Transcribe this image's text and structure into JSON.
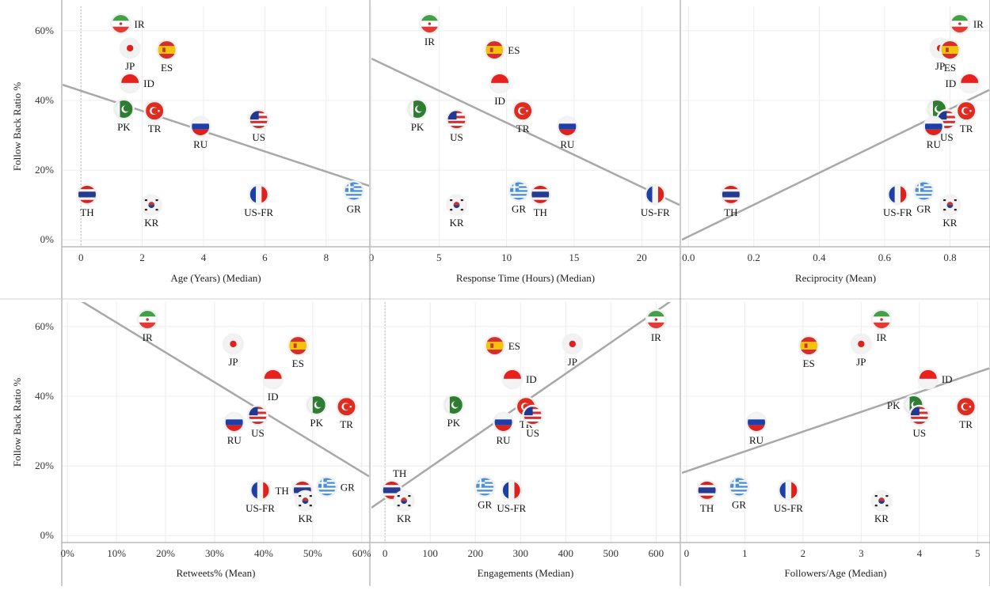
{
  "ylabel": "Follow Back Ratio %",
  "y_ticks": [
    "0%",
    "20%",
    "40%",
    "60%"
  ],
  "y_tick_values": [
    0,
    20,
    40,
    60
  ],
  "colors": {
    "grid": "#ececec",
    "trend": "#a8a8a8",
    "frame": "#9a9a9a",
    "zero_line": "#bbbbbb"
  },
  "countries": {
    "IR": {
      "flag": "iran-flag"
    },
    "JP": {
      "flag": "japan-flag"
    },
    "ES": {
      "flag": "spain-flag"
    },
    "ID": {
      "flag": "indonesia-flag"
    },
    "PK": {
      "flag": "pakistan-flag"
    },
    "TR": {
      "flag": "turkey-flag"
    },
    "RU": {
      "flag": "russia-flag"
    },
    "US": {
      "flag": "usa-flag"
    },
    "TH": {
      "flag": "thailand-flag"
    },
    "KR": {
      "flag": "south-korea-flag"
    },
    "US-FR": {
      "flag": "france-flag"
    },
    "GR": {
      "flag": "greece-flag"
    }
  },
  "chart_data": [
    {
      "type": "scatter",
      "xlabel": "Age (Years) (Median)",
      "ylabel": "Follow Back Ratio %",
      "x_ticks": [
        "0",
        "2",
        "4",
        "6",
        "8"
      ],
      "x_tick_values": [
        0,
        2,
        4,
        6,
        8
      ],
      "xlim": [
        -0.6,
        9.4
      ],
      "ylim": [
        -2,
        67
      ],
      "zero_line": 0,
      "trend": [
        [
          -0.6,
          44.5
        ],
        [
          9.4,
          15.5
        ]
      ],
      "points": [
        {
          "label": "IR",
          "x": 1.3,
          "y": 62
        },
        {
          "label": "JP",
          "x": 1.6,
          "y": 55
        },
        {
          "label": "ES",
          "x": 2.8,
          "y": 54.5
        },
        {
          "label": "ID",
          "x": 1.6,
          "y": 45
        },
        {
          "label": "PK",
          "x": 1.4,
          "y": 37.5
        },
        {
          "label": "TR",
          "x": 2.4,
          "y": 37
        },
        {
          "label": "RU",
          "x": 3.9,
          "y": 32.5
        },
        {
          "label": "US",
          "x": 5.8,
          "y": 34.5
        },
        {
          "label": "TH",
          "x": 0.2,
          "y": 13
        },
        {
          "label": "KR",
          "x": 2.3,
          "y": 10
        },
        {
          "label": "US-FR",
          "x": 5.8,
          "y": 13
        },
        {
          "label": "GR",
          "x": 8.9,
          "y": 14
        }
      ]
    },
    {
      "type": "scatter",
      "xlabel": "Response Time (Hours) (Median)",
      "ylabel": "Follow Back Ratio %",
      "x_ticks": [
        "0",
        "5",
        "10",
        "15",
        "20"
      ],
      "x_tick_values": [
        0,
        5,
        10,
        15,
        20
      ],
      "xlim": [
        0,
        22.8
      ],
      "ylim": [
        -2,
        67
      ],
      "trend": [
        [
          0,
          52
        ],
        [
          22.8,
          10
        ]
      ],
      "points": [
        {
          "label": "IR",
          "x": 4.3,
          "y": 62
        },
        {
          "label": "ES",
          "x": 9.1,
          "y": 54.5
        },
        {
          "label": "ID",
          "x": 9.5,
          "y": 45
        },
        {
          "label": "PK",
          "x": 3.4,
          "y": 37.5
        },
        {
          "label": "US",
          "x": 6.3,
          "y": 34.5
        },
        {
          "label": "TR",
          "x": 11.2,
          "y": 37
        },
        {
          "label": "RU",
          "x": 14.5,
          "y": 32.5
        },
        {
          "label": "KR",
          "x": 6.3,
          "y": 10
        },
        {
          "label": "GR",
          "x": 10.9,
          "y": 14
        },
        {
          "label": "TH",
          "x": 12.5,
          "y": 13
        },
        {
          "label": "US-FR",
          "x": 21,
          "y": 13
        }
      ]
    },
    {
      "type": "scatter",
      "xlabel": "Reciprocity (Mean)",
      "ylabel": "Follow Back Ratio %",
      "x_ticks": [
        "0.0",
        "0.2",
        "0.4",
        "0.6",
        "0.8"
      ],
      "x_tick_values": [
        0,
        0.2,
        0.4,
        0.6,
        0.8
      ],
      "xlim": [
        -0.02,
        0.92
      ],
      "ylim": [
        -2,
        67
      ],
      "trend": [
        [
          -0.02,
          0
        ],
        [
          0.92,
          43
        ]
      ],
      "points": [
        {
          "label": "IR",
          "x": 0.83,
          "y": 62
        },
        {
          "label": "JP",
          "x": 0.77,
          "y": 55
        },
        {
          "label": "ES",
          "x": 0.8,
          "y": 54.5
        },
        {
          "label": "ID",
          "x": 0.86,
          "y": 45
        },
        {
          "label": "PK",
          "x": 0.76,
          "y": 37.5
        },
        {
          "label": "US",
          "x": 0.79,
          "y": 34.5
        },
        {
          "label": "RU",
          "x": 0.75,
          "y": 32.5
        },
        {
          "label": "TR",
          "x": 0.85,
          "y": 37
        },
        {
          "label": "TH",
          "x": 0.13,
          "y": 13
        },
        {
          "label": "US-FR",
          "x": 0.64,
          "y": 13
        },
        {
          "label": "GR",
          "x": 0.72,
          "y": 14
        },
        {
          "label": "KR",
          "x": 0.8,
          "y": 10
        }
      ]
    },
    {
      "type": "scatter",
      "xlabel": "Retweets% (Mean)",
      "ylabel": "Follow Back Ratio %",
      "x_ticks": [
        "0%",
        "10%",
        "20%",
        "30%",
        "40%",
        "50%",
        "60%"
      ],
      "x_tick_values": [
        0,
        10,
        20,
        30,
        40,
        50,
        60
      ],
      "xlim": [
        -1,
        61.5
      ],
      "ylim": [
        -2,
        67
      ],
      "trend": [
        [
          2,
          68
        ],
        [
          61.5,
          17
        ]
      ],
      "points": [
        {
          "label": "IR",
          "x": 16.3,
          "y": 62
        },
        {
          "label": "JP",
          "x": 33.8,
          "y": 55
        },
        {
          "label": "ES",
          "x": 47,
          "y": 54.5
        },
        {
          "label": "ID",
          "x": 41.9,
          "y": 45
        },
        {
          "label": "PK",
          "x": 50.8,
          "y": 37.5
        },
        {
          "label": "TR",
          "x": 56.9,
          "y": 37
        },
        {
          "label": "RU",
          "x": 34,
          "y": 32.5
        },
        {
          "label": "US",
          "x": 38.8,
          "y": 34.5
        },
        {
          "label": "US-FR",
          "x": 39.3,
          "y": 13
        },
        {
          "label": "TH",
          "x": 47.9,
          "y": 13
        },
        {
          "label": "KR",
          "x": 48.5,
          "y": 10
        },
        {
          "label": "GR",
          "x": 52.9,
          "y": 14
        }
      ]
    },
    {
      "type": "scatter",
      "xlabel": "Engagements (Median)",
      "ylabel": "Follow Back Ratio %",
      "x_ticks": [
        "0",
        "100",
        "200",
        "300",
        "400",
        "500",
        "600"
      ],
      "x_tick_values": [
        0,
        100,
        200,
        300,
        400,
        500,
        600
      ],
      "xlim": [
        -30,
        652
      ],
      "ylim": [
        -2,
        67
      ],
      "zero_line": 0,
      "trend": [
        [
          -30,
          8
        ],
        [
          652,
          69
        ]
      ],
      "points": [
        {
          "label": "IR",
          "x": 600,
          "y": 62
        },
        {
          "label": "ES",
          "x": 243,
          "y": 54.5
        },
        {
          "label": "JP",
          "x": 415,
          "y": 55
        },
        {
          "label": "ID",
          "x": 282,
          "y": 45
        },
        {
          "label": "PK",
          "x": 152,
          "y": 37.5
        },
        {
          "label": "TR",
          "x": 312,
          "y": 37
        },
        {
          "label": "US",
          "x": 327,
          "y": 34.5
        },
        {
          "label": "RU",
          "x": 262,
          "y": 32.5
        },
        {
          "label": "TH",
          "x": 15,
          "y": 13
        },
        {
          "label": "KR",
          "x": 42,
          "y": 10
        },
        {
          "label": "GR",
          "x": 221,
          "y": 14
        },
        {
          "label": "US-FR",
          "x": 280,
          "y": 13
        }
      ]
    },
    {
      "type": "scatter",
      "xlabel": "Followers/Age (Median)",
      "ylabel": "Follow Back Ratio %",
      "x_ticks": [
        "0",
        "1",
        "2",
        "3",
        "4",
        "5"
      ],
      "x_tick_values": [
        0,
        1,
        2,
        3,
        4,
        5
      ],
      "xlim": [
        -0.08,
        5.2
      ],
      "ylim": [
        -2,
        67
      ],
      "trend": [
        [
          -0.08,
          18
        ],
        [
          5.2,
          48
        ]
      ],
      "points": [
        {
          "label": "IR",
          "x": 3.35,
          "y": 62
        },
        {
          "label": "ES",
          "x": 2.1,
          "y": 54.5
        },
        {
          "label": "JP",
          "x": 3.0,
          "y": 55
        },
        {
          "label": "ID",
          "x": 4.15,
          "y": 45
        },
        {
          "label": "PK",
          "x": 3.9,
          "y": 37.5
        },
        {
          "label": "US",
          "x": 4.0,
          "y": 34.5
        },
        {
          "label": "TR",
          "x": 4.8,
          "y": 37
        },
        {
          "label": "RU",
          "x": 1.2,
          "y": 32.5
        },
        {
          "label": "TH",
          "x": 0.35,
          "y": 13
        },
        {
          "label": "GR",
          "x": 0.9,
          "y": 14
        },
        {
          "label": "US-FR",
          "x": 1.75,
          "y": 13
        },
        {
          "label": "KR",
          "x": 3.35,
          "y": 10
        }
      ]
    }
  ]
}
